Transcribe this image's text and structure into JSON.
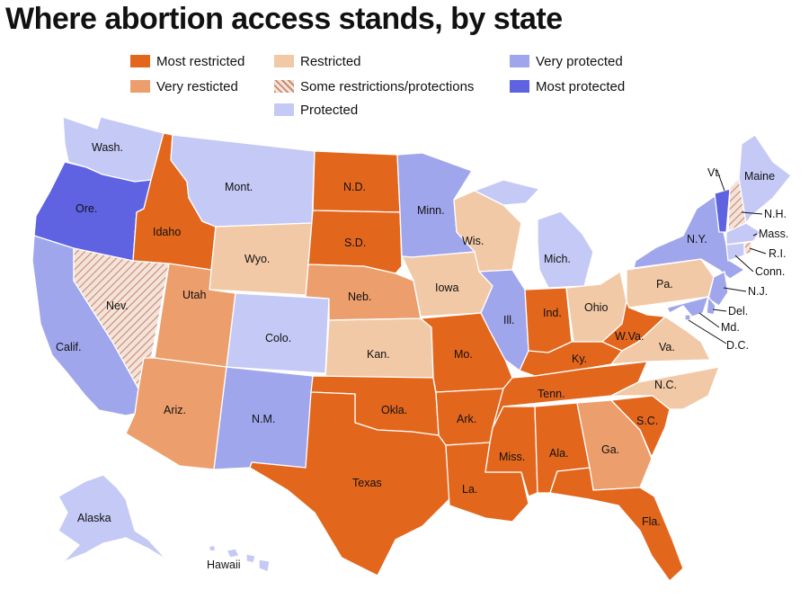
{
  "title": "Where abortion access stands, by state",
  "colors": {
    "most_restricted": "#e3661d",
    "very_restricted": "#ec9e6c",
    "restricted": "#f2c9a6",
    "some": "#e8c6b4",
    "protected": "#c5c9f5",
    "very_protected": "#a0a6ec",
    "most_protected": "#5f62e1"
  },
  "legend": [
    {
      "key": "most_restricted",
      "label": "Most restricted"
    },
    {
      "key": "very_restricted",
      "label": "Very resticted"
    },
    {
      "key": "restricted",
      "label": "Restricted"
    },
    {
      "key": "some",
      "label": "Some restrictions/protections"
    },
    {
      "key": "protected",
      "label": "Protected"
    },
    {
      "key": "very_protected",
      "label": "Very protected"
    },
    {
      "key": "most_protected",
      "label": "Most protected"
    }
  ],
  "states": {
    "wa": {
      "label": "Wash.",
      "cat": "protected"
    },
    "or": {
      "label": "Ore.",
      "cat": "most_protected"
    },
    "ca": {
      "label": "Calif.",
      "cat": "very_protected"
    },
    "nv": {
      "label": "Nev.",
      "cat": "some"
    },
    "id": {
      "label": "Idaho",
      "cat": "most_restricted"
    },
    "mt": {
      "label": "Mont.",
      "cat": "protected"
    },
    "wy": {
      "label": "Wyo.",
      "cat": "restricted"
    },
    "ut": {
      "label": "Utah",
      "cat": "very_restricted"
    },
    "az": {
      "label": "Ariz.",
      "cat": "very_restricted"
    },
    "co": {
      "label": "Colo.",
      "cat": "protected"
    },
    "nm": {
      "label": "N.M.",
      "cat": "very_protected"
    },
    "nd": {
      "label": "N.D.",
      "cat": "most_restricted"
    },
    "sd": {
      "label": "S.D.",
      "cat": "most_restricted"
    },
    "ne": {
      "label": "Neb.",
      "cat": "very_restricted"
    },
    "ks": {
      "label": "Kan.",
      "cat": "restricted"
    },
    "ok": {
      "label": "Okla.",
      "cat": "most_restricted"
    },
    "tx": {
      "label": "Texas",
      "cat": "most_restricted"
    },
    "mn": {
      "label": "Minn.",
      "cat": "very_protected"
    },
    "ia": {
      "label": "Iowa",
      "cat": "restricted"
    },
    "mo": {
      "label": "Mo.",
      "cat": "most_restricted"
    },
    "ar": {
      "label": "Ark.",
      "cat": "most_restricted"
    },
    "la": {
      "label": "La.",
      "cat": "most_restricted"
    },
    "wi": {
      "label": "Wis.",
      "cat": "restricted"
    },
    "il": {
      "label": "Ill.",
      "cat": "very_protected"
    },
    "mi": {
      "label": "Mich.",
      "cat": "protected"
    },
    "in": {
      "label": "Ind.",
      "cat": "most_restricted"
    },
    "oh": {
      "label": "Ohio",
      "cat": "restricted"
    },
    "ky": {
      "label": "Ky.",
      "cat": "most_restricted"
    },
    "tn": {
      "label": "Tenn.",
      "cat": "most_restricted"
    },
    "ms": {
      "label": "Miss.",
      "cat": "most_restricted"
    },
    "al": {
      "label": "Ala.",
      "cat": "most_restricted"
    },
    "ga": {
      "label": "Ga.",
      "cat": "very_restricted"
    },
    "fl": {
      "label": "Fla.",
      "cat": "most_restricted"
    },
    "sc": {
      "label": "S.C.",
      "cat": "most_restricted"
    },
    "nc": {
      "label": "N.C.",
      "cat": "restricted"
    },
    "va": {
      "label": "Va.",
      "cat": "restricted"
    },
    "wv": {
      "label": "W.Va.",
      "cat": "most_restricted"
    },
    "pa": {
      "label": "Pa.",
      "cat": "restricted"
    },
    "ny": {
      "label": "N.Y.",
      "cat": "very_protected"
    },
    "nj": {
      "label": "N.J.",
      "cat": "very_protected"
    },
    "de": {
      "label": "Del.",
      "cat": "very_protected"
    },
    "md": {
      "label": "Md.",
      "cat": "very_protected"
    },
    "dc": {
      "label": "D.C.",
      "cat": "very_protected"
    },
    "vt": {
      "label": "Vt.",
      "cat": "most_protected"
    },
    "nh": {
      "label": "N.H.",
      "cat": "some"
    },
    "me": {
      "label": "Maine",
      "cat": "protected"
    },
    "ma": {
      "label": "Mass.",
      "cat": "protected"
    },
    "ri": {
      "label": "R.I.",
      "cat": "some"
    },
    "ct": {
      "label": "Conn.",
      "cat": "protected"
    },
    "ak": {
      "label": "Alaska",
      "cat": "protected"
    },
    "hi": {
      "label": "Hawaii",
      "cat": "protected"
    }
  }
}
